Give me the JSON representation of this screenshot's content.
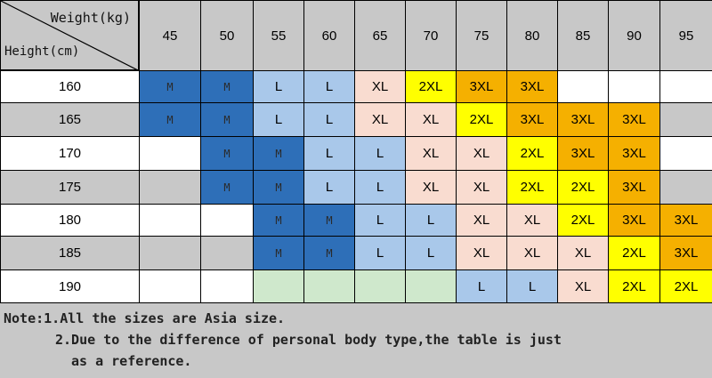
{
  "table": {
    "corner": {
      "weight_label": "Weight(kg)",
      "height_label": "Height(cm)"
    },
    "weights": [
      "45",
      "50",
      "55",
      "60",
      "65",
      "70",
      "75",
      "80",
      "85",
      "90",
      "95"
    ],
    "rows": [
      {
        "height": "160",
        "sizes": [
          "M",
          "M",
          "L",
          "L",
          "XL",
          "2XL",
          "3XL",
          "3XL",
          "",
          "",
          ""
        ]
      },
      {
        "height": "165",
        "sizes": [
          "M",
          "M",
          "L",
          "L",
          "XL",
          "XL",
          "2XL",
          "3XL",
          "3XL",
          "3XL",
          ""
        ]
      },
      {
        "height": "170",
        "sizes": [
          "",
          "M",
          "M",
          "L",
          "L",
          "XL",
          "XL",
          "2XL",
          "3XL",
          "3XL",
          ""
        ]
      },
      {
        "height": "175",
        "sizes": [
          "",
          "M",
          "M",
          "L",
          "L",
          "XL",
          "XL",
          "2XL",
          "2XL",
          "3XL",
          ""
        ]
      },
      {
        "height": "180",
        "sizes": [
          "",
          "",
          "M",
          "M",
          "L",
          "L",
          "XL",
          "XL",
          "2XL",
          "3XL",
          "3XL"
        ]
      },
      {
        "height": "185",
        "sizes": [
          "",
          "",
          "M",
          "M",
          "L",
          "L",
          "XL",
          "XL",
          "XL",
          "2XL",
          "3XL"
        ]
      },
      {
        "height": "190",
        "sizes": [
          "",
          "",
          "",
          "",
          "",
          "",
          "L",
          "L",
          "XL",
          "2XL",
          "2XL"
        ]
      }
    ],
    "colors": {
      "M": "#2e6fb8",
      "L": "#a9c8ea",
      "XL": "#f9dcd0",
      "2XL": "#ffff00",
      "3XL": "#f5b000",
      "header": "#c8c8c8",
      "row_white": "#ffffff",
      "row_gray": "#c8c8c8",
      "row_190_mid": "#cfe8cc"
    }
  },
  "notes": {
    "line1": "Note:1.All the sizes are Asia size.",
    "line2": "2.Due to the difference of personal body type,the table is just",
    "line3": "as a reference."
  }
}
